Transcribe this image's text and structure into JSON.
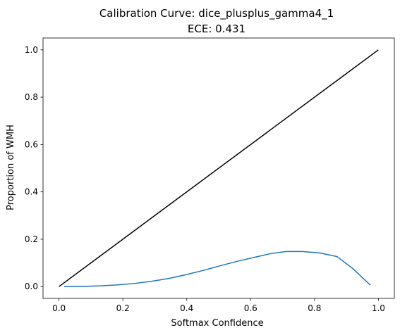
{
  "chart_data": {
    "type": "line",
    "title": "Calibration Curve: dice_plusplus_gamma4_1",
    "subtitle": "ECE: 0.431",
    "xlabel": "Softmax Confidence",
    "ylabel": "Proportion of WMH",
    "xlim": [
      -0.05,
      1.05
    ],
    "ylim": [
      -0.05,
      1.05
    ],
    "xticks": [
      0.0,
      0.2,
      0.4,
      0.6,
      0.8,
      1.0
    ],
    "yticks": [
      0.0,
      0.2,
      0.4,
      0.6,
      0.8,
      1.0
    ],
    "xtick_labels": [
      "0.0",
      "0.2",
      "0.4",
      "0.6",
      "0.8",
      "1.0"
    ],
    "ytick_labels": [
      "0.0",
      "0.2",
      "0.4",
      "0.6",
      "0.8",
      "1.0"
    ],
    "grid": false,
    "series": [
      {
        "color": "#000000",
        "x": [
          0.0,
          1.0
        ],
        "y": [
          0.0,
          1.0
        ]
      },
      {
        "color": "#1f77b4",
        "x": [
          0.016,
          0.081,
          0.131,
          0.181,
          0.235,
          0.289,
          0.343,
          0.397,
          0.451,
          0.505,
          0.559,
          0.613,
          0.662,
          0.711,
          0.762,
          0.816,
          0.87,
          0.921,
          0.975
        ],
        "y": [
          0.0,
          0.001,
          0.003,
          0.007,
          0.013,
          0.022,
          0.034,
          0.05,
          0.068,
          0.088,
          0.107,
          0.124,
          0.139,
          0.148,
          0.148,
          0.142,
          0.127,
          0.075,
          0.006
        ]
      }
    ]
  }
}
